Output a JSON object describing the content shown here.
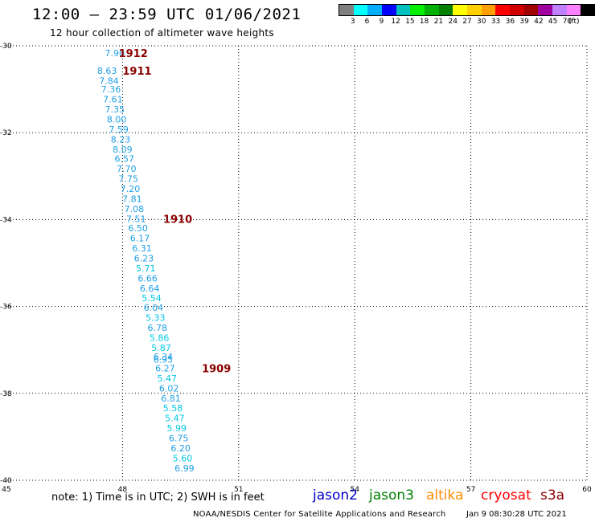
{
  "header": {
    "title": "12:00 — 23:59 UTC 01/06/2021",
    "subtitle": "12 hour collection of altimeter wave heights"
  },
  "legend": {
    "colors": [
      "#808080",
      "#00ffff",
      "#00b0ff",
      "#0000ff",
      "#00c0c0",
      "#00ee00",
      "#00b000",
      "#008000",
      "#ffff00",
      "#ffd000",
      "#ffa000",
      "#ff0000",
      "#d00000",
      "#a00000",
      "#a000a0",
      "#c080ff",
      "#ff80ff",
      "#000000"
    ],
    "labels": [
      "3",
      "6",
      "9",
      "12",
      "15",
      "18",
      "21",
      "24",
      "27",
      "30",
      "33",
      "36",
      "39",
      "42",
      "45",
      "70"
    ],
    "unit": "(ft)"
  },
  "chart_data": {
    "type": "scatter",
    "title": "12:00 — 23:59 UTC 01/06/2021",
    "subtitle": "12 hour collection of altimeter wave heights",
    "xlim": [
      45,
      60
    ],
    "ylim": [
      -40,
      -30
    ],
    "x_ticks": [
      "45",
      "48",
      "51",
      "54",
      "57",
      "60"
    ],
    "x_tick_values": [
      45,
      48,
      51,
      54,
      57,
      60
    ],
    "y_ticks": [
      "-30",
      "-32",
      "-34",
      "-36",
      "-38",
      "-40"
    ],
    "y_tick_values": [
      -30,
      -32,
      -34,
      -36,
      -38,
      -40
    ],
    "grid": true,
    "series": [
      {
        "name": "jason2",
        "color": "#0000cd",
        "points": [
          {
            "lon": 47.8,
            "lat": -30.17,
            "swh": "7.90"
          },
          {
            "lon": 47.6,
            "lat": -30.57,
            "swh": "8.63"
          },
          {
            "lon": 47.65,
            "lat": -30.8,
            "swh": "7.84"
          },
          {
            "lon": 47.7,
            "lat": -31.0,
            "swh": "7.36"
          },
          {
            "lon": 47.75,
            "lat": -31.23,
            "swh": "7.61"
          },
          {
            "lon": 47.8,
            "lat": -31.46,
            "swh": "7.35"
          },
          {
            "lon": 47.85,
            "lat": -31.69,
            "swh": "8.00"
          },
          {
            "lon": 47.9,
            "lat": -31.92,
            "swh": "7.59"
          },
          {
            "lon": 47.95,
            "lat": -32.15,
            "swh": "8.23"
          },
          {
            "lon": 48.0,
            "lat": -32.38,
            "swh": "8.09"
          },
          {
            "lon": 48.05,
            "lat": -32.6,
            "swh": "6.57"
          },
          {
            "lon": 48.1,
            "lat": -32.83,
            "swh": "7.70"
          },
          {
            "lon": 48.15,
            "lat": -33.06,
            "swh": "7.75"
          },
          {
            "lon": 48.2,
            "lat": -33.29,
            "swh": "7.20"
          },
          {
            "lon": 48.25,
            "lat": -33.52,
            "swh": "7.81"
          },
          {
            "lon": 48.3,
            "lat": -33.75,
            "swh": "7.08"
          },
          {
            "lon": 48.35,
            "lat": -33.98,
            "swh": "7.51"
          },
          {
            "lon": 48.4,
            "lat": -34.2,
            "swh": "6.50"
          },
          {
            "lon": 48.45,
            "lat": -34.43,
            "swh": "6.17"
          },
          {
            "lon": 48.5,
            "lat": -34.66,
            "swh": "6.31"
          },
          {
            "lon": 48.55,
            "lat": -34.89,
            "swh": "6.23"
          },
          {
            "lon": 48.6,
            "lat": -35.12,
            "swh": "5.71"
          },
          {
            "lon": 48.65,
            "lat": -35.35,
            "swh": "6.66"
          },
          {
            "lon": 48.7,
            "lat": -35.58,
            "swh": "6.64"
          },
          {
            "lon": 48.75,
            "lat": -35.8,
            "swh": "5.54"
          },
          {
            "lon": 48.8,
            "lat": -36.03,
            "swh": "6.04"
          },
          {
            "lon": 48.85,
            "lat": -36.26,
            "swh": "5.33"
          },
          {
            "lon": 48.9,
            "lat": -36.49,
            "swh": "6.78"
          },
          {
            "lon": 48.95,
            "lat": -36.72,
            "swh": "5.86"
          },
          {
            "lon": 49.0,
            "lat": -36.95,
            "swh": "5.87"
          },
          {
            "lon": 49.05,
            "lat": -37.15,
            "swh": "6.34"
          },
          {
            "lon": 49.05,
            "lat": -37.22,
            "swh": "6.95"
          },
          {
            "lon": 49.1,
            "lat": -37.42,
            "swh": "6.27"
          },
          {
            "lon": 49.15,
            "lat": -37.65,
            "swh": "5.47"
          },
          {
            "lon": 49.2,
            "lat": -37.88,
            "swh": "6.02"
          },
          {
            "lon": 49.25,
            "lat": -38.11,
            "swh": "6.81"
          },
          {
            "lon": 49.3,
            "lat": -38.34,
            "swh": "5.58"
          },
          {
            "lon": 49.35,
            "lat": -38.57,
            "swh": "5.47"
          },
          {
            "lon": 49.4,
            "lat": -38.8,
            "swh": "5.99"
          },
          {
            "lon": 49.45,
            "lat": -39.03,
            "swh": "6.75"
          },
          {
            "lon": 49.5,
            "lat": -39.26,
            "swh": "6.20"
          },
          {
            "lon": 49.55,
            "lat": -39.49,
            "swh": "5.60"
          },
          {
            "lon": 49.6,
            "lat": -39.72,
            "swh": "6.99"
          }
        ]
      }
    ],
    "time_labels": [
      {
        "lon": 47.9,
        "lat": -30.17,
        "text": "1912"
      },
      {
        "lon": 48.0,
        "lat": -30.57,
        "text": "1911"
      },
      {
        "lon": 49.05,
        "lat": -33.98,
        "text": "1910"
      },
      {
        "lon": 50.05,
        "lat": -37.42,
        "text": "1909"
      }
    ]
  },
  "footer": {
    "note": "note:  1) Time is in UTC; 2) SWH is in feet",
    "satellites": [
      {
        "name": "jason2",
        "color": "#0000cd"
      },
      {
        "name": "jason3",
        "color": "#008000"
      },
      {
        "name": "altika",
        "color": "#ff8c00"
      },
      {
        "name": "cryosat",
        "color": "#ff0000"
      },
      {
        "name": "s3a",
        "color": "#8b0000"
      }
    ],
    "credit": "NOAA/NESDIS Center for Satellite Applications and Research",
    "timestamp": "Jan  9 08:30:28 UTC 2021"
  }
}
